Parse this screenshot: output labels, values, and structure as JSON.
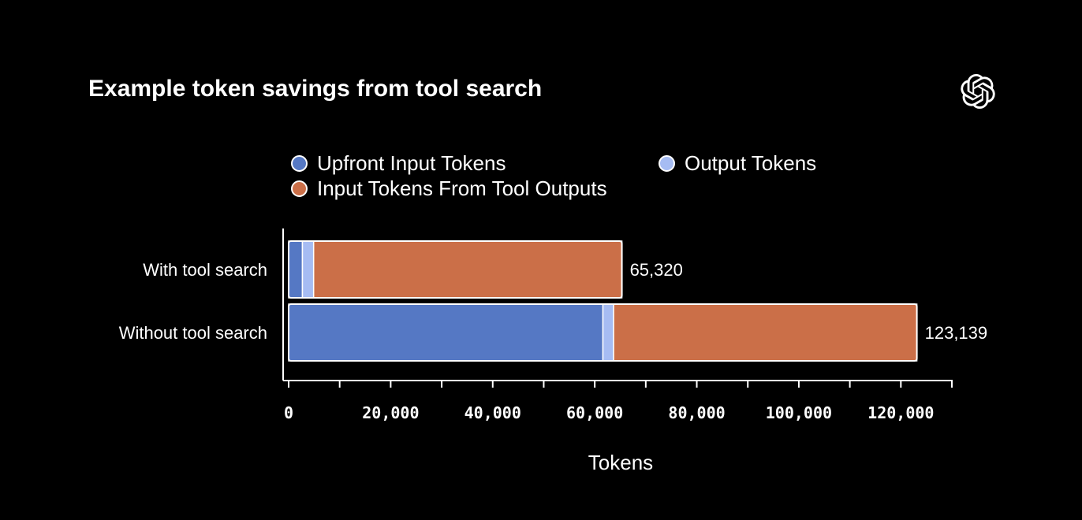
{
  "title": "Example token savings from tool search",
  "icons": {
    "logo": "openai-logo-icon"
  },
  "legend": [
    {
      "label": "Upfront Input Tokens",
      "color": "#5578C4"
    },
    {
      "label": "Output Tokens",
      "color": "#A6BCF3"
    },
    {
      "label": "Input Tokens From Tool Outputs",
      "color": "#CB6F48"
    }
  ],
  "chart_data": {
    "type": "bar",
    "orientation": "horizontal",
    "stacked": true,
    "categories": [
      "With tool search",
      "Without tool search"
    ],
    "series": [
      {
        "name": "Upfront Input Tokens",
        "color": "#5578C4",
        "values": [
          2700,
          61600
        ]
      },
      {
        "name": "Output Tokens",
        "color": "#A6BCF3",
        "values": [
          2200,
          2100
        ]
      },
      {
        "name": "Input Tokens From Tool Outputs",
        "color": "#CB6F48",
        "values": [
          60420,
          59439
        ]
      }
    ],
    "totals": [
      65320,
      123139
    ],
    "total_labels": [
      "65,320",
      "123,139"
    ],
    "xlabel": "Tokens",
    "ylabel": "",
    "xlim": [
      0,
      130000
    ],
    "xticks": [
      0,
      10000,
      20000,
      30000,
      40000,
      50000,
      60000,
      70000,
      80000,
      90000,
      100000,
      110000,
      120000,
      130000
    ],
    "xtick_labels": [
      {
        "value": 0,
        "label": "0"
      },
      {
        "value": 20000,
        "label": "20,000"
      },
      {
        "value": 40000,
        "label": "40,000"
      },
      {
        "value": 60000,
        "label": "60,000"
      },
      {
        "value": 80000,
        "label": "80,000"
      },
      {
        "value": 100000,
        "label": "100,000"
      },
      {
        "value": 120000,
        "label": "120,000"
      }
    ],
    "grid": false,
    "legend_position": "top"
  }
}
